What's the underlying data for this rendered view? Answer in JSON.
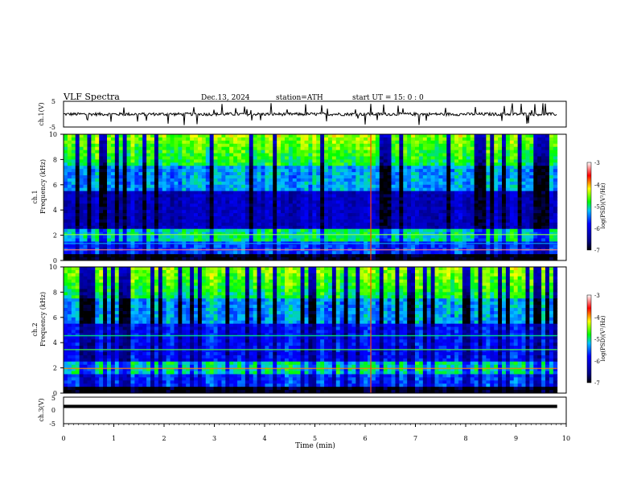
{
  "header": {
    "title": "VLF  Spectra",
    "date": "Dec.13, 2024",
    "station": "station=ATH",
    "start": "start  UT  =   15: 0  : 0"
  },
  "chart_data": [
    {
      "type": "line",
      "name": "ch1-waveform",
      "ylabel": "ch.1(V)",
      "ylim": [
        -5,
        5
      ],
      "yticks": [
        "5",
        "-5"
      ],
      "baseline": 0,
      "xlim": [
        0,
        10
      ]
    },
    {
      "type": "heatmap",
      "name": "ch1-spectrogram",
      "ylabel_line1": "ch.1",
      "ylabel_line2": "Frequency  (kHz)",
      "ylim": [
        0,
        10
      ],
      "yticks": [
        "0",
        "2",
        "4",
        "6",
        "8",
        "10"
      ],
      "xlim": [
        0,
        10
      ],
      "data_end_min": 9.82,
      "colorbar": {
        "label": "log(PSD)(V²/Hz)",
        "range": [
          -7,
          -3
        ],
        "ticks": [
          "-3",
          "-4",
          "-5",
          "-6",
          "-7"
        ]
      }
    },
    {
      "type": "heatmap",
      "name": "ch2-spectrogram",
      "ylabel_line1": "ch.2",
      "ylabel_line2": "Frequency  (kHz)",
      "ylim": [
        0,
        10
      ],
      "yticks": [
        "0",
        "2",
        "4",
        "6",
        "8",
        "10"
      ],
      "xlim": [
        0,
        10
      ],
      "data_end_min": 9.82,
      "colorbar": {
        "label": "log(PSD)(V²/Hz)",
        "range": [
          -7,
          -3
        ],
        "ticks": [
          "-3",
          "-4",
          "-5",
          "-6",
          "-7"
        ]
      }
    },
    {
      "type": "line",
      "name": "ch3-waveform",
      "ylabel": "ch.3(V)",
      "ylim": [
        -5,
        5
      ],
      "yticks": [
        "5",
        "0",
        "-5"
      ],
      "baseline": 1.5,
      "xlim": [
        0,
        10
      ]
    }
  ],
  "xaxis": {
    "label": "Time  (min)",
    "ticks": [
      "0",
      "1",
      "2",
      "3",
      "4",
      "5",
      "6",
      "7",
      "8",
      "9",
      "10"
    ]
  },
  "colors": {
    "frame": "#000000",
    "background": "#ffffff"
  }
}
